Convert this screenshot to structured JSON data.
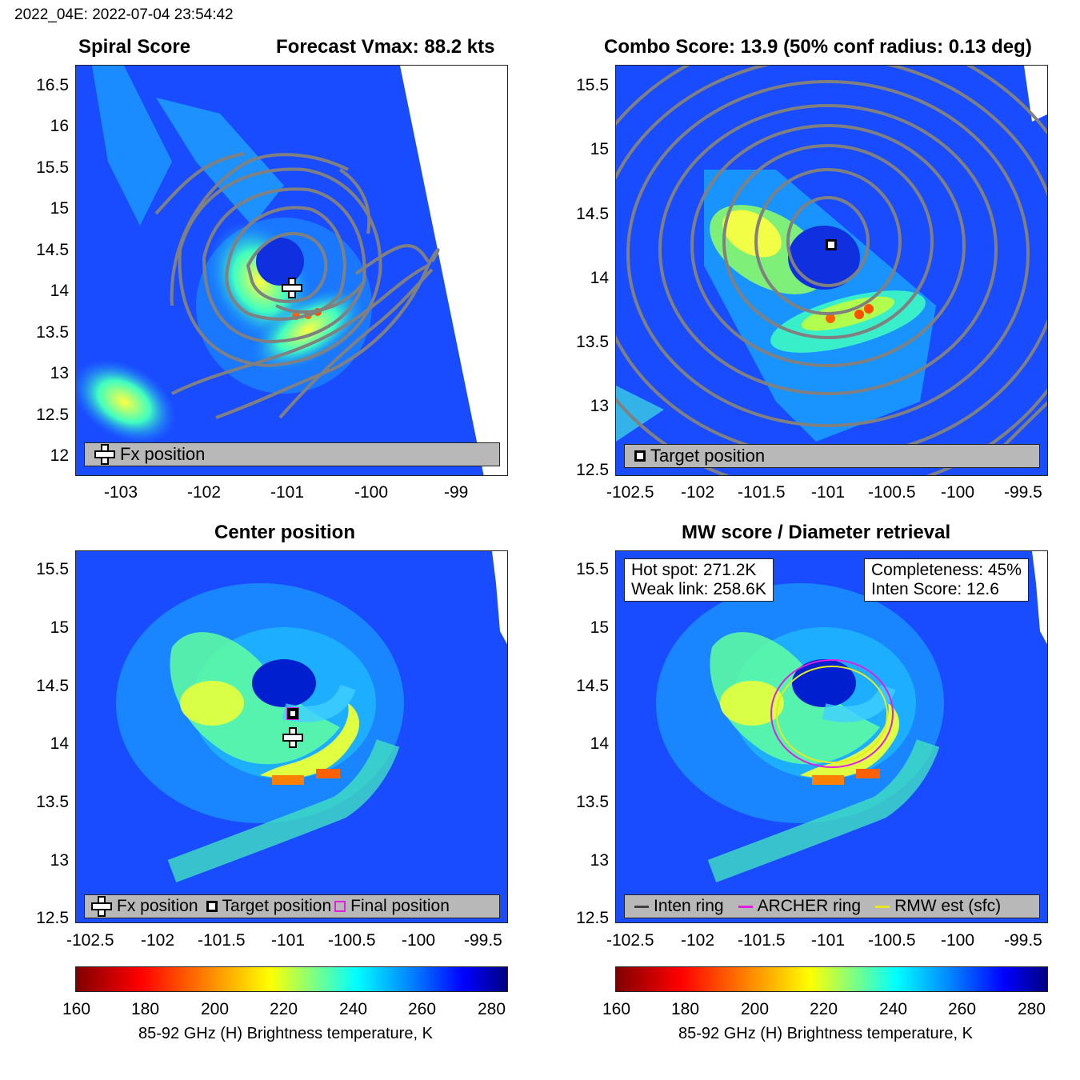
{
  "figure_title": "2022_04E: 2022-07-04 23:54:42",
  "panels": {
    "spiral": {
      "title_left": "Spiral Score",
      "title_right": "Forecast Vmax: 88.2 kts",
      "x_ticks": [
        "-103",
        "-102",
        "-101",
        "-100",
        "-99"
      ],
      "y_ticks": [
        "16.5",
        "16",
        "15.5",
        "15",
        "14.5",
        "14",
        "13.5",
        "13",
        "12.5",
        "12"
      ],
      "legend": [
        "Fx position"
      ]
    },
    "combo": {
      "title": "Combo Score: 13.9  (50% conf radius: 0.13 deg)",
      "x_ticks": [
        "-102.5",
        "-102",
        "-101.5",
        "-101",
        "-100.5",
        "-100",
        "-99.5"
      ],
      "y_ticks": [
        "15.5",
        "15",
        "14.5",
        "14",
        "13.5",
        "13",
        "12.5"
      ],
      "legend": [
        "Target position"
      ]
    },
    "center": {
      "title": "Center position",
      "x_ticks": [
        "-102.5",
        "-102",
        "-101.5",
        "-101",
        "-100.5",
        "-100",
        "-99.5"
      ],
      "y_ticks": [
        "15.5",
        "15",
        "14.5",
        "14",
        "13.5",
        "13",
        "12.5"
      ],
      "legend": [
        "Fx position",
        "Target position",
        "Final position"
      ]
    },
    "mw": {
      "title": "MW score / Diameter retrieval",
      "x_ticks": [
        "-102.5",
        "-102",
        "-101.5",
        "-101",
        "-100.5",
        "-100",
        "-99.5"
      ],
      "y_ticks": [
        "15.5",
        "15",
        "14.5",
        "14",
        "13.5",
        "13",
        "12.5"
      ],
      "info_left": [
        "Hot spot: 271.2K",
        "Weak link: 258.6K"
      ],
      "info_right": [
        "Completeness: 45%",
        "Inten Score: 12.6"
      ],
      "legend": [
        "Inten ring",
        "ARCHER ring",
        "RMW est (sfc)"
      ]
    }
  },
  "colorbar": {
    "ticks": [
      "160",
      "180",
      "200",
      "220",
      "240",
      "260",
      "280"
    ],
    "label": "85-92 GHz (H) Brightness temperature, K"
  },
  "colors": {
    "background_field": "#1a4cff",
    "contour": "#808080",
    "legend_bg": "#b8b8b8",
    "archer_ring": "#e020e0",
    "rmw_ring": "#e8e820",
    "inten_ring": "#404040"
  },
  "chart_data": [
    {
      "type": "heatmap",
      "title": "Spiral Score",
      "subtitle": "Forecast Vmax: 88.2 kts",
      "xlim": [
        -103.6,
        -98.4
      ],
      "ylim": [
        11.8,
        16.8
      ],
      "fx_position": {
        "lon": -101.0,
        "lat": 14.05
      }
    },
    {
      "type": "heatmap",
      "title": "Combo Score: 13.9  (50% conf radius: 0.13 deg)",
      "combo_score": 13.9,
      "conf_radius_deg": 0.13,
      "xlim": [
        -102.7,
        -99.4
      ],
      "ylim": [
        12.45,
        15.7
      ],
      "target_position": {
        "lon": -101.0,
        "lat": 14.27
      }
    },
    {
      "type": "heatmap",
      "title": "Center position",
      "xlim": [
        -102.7,
        -99.4
      ],
      "ylim": [
        12.45,
        15.7
      ],
      "fx_position": {
        "lon": -101.0,
        "lat": 14.07
      },
      "target_position": {
        "lon": -101.0,
        "lat": 14.27
      },
      "final_position": {
        "lon": -101.0,
        "lat": 14.27
      }
    },
    {
      "type": "heatmap",
      "title": "MW score / Diameter retrieval",
      "hot_spot_K": 271.2,
      "weak_link_K": 258.6,
      "completeness_pct": 45,
      "inten_score": 12.6,
      "xlim": [
        -102.7,
        -99.4
      ],
      "ylim": [
        12.45,
        15.7
      ],
      "rings": [
        {
          "name": "ARCHER ring",
          "center_lon": -101.0,
          "center_lat": 14.27,
          "radius_deg": 0.45
        },
        {
          "name": "RMW est (sfc)",
          "center_lon": -101.0,
          "center_lat": 14.27,
          "radius_deg": 0.4
        }
      ]
    },
    {
      "type": "colorbar",
      "range": [
        160,
        285
      ],
      "ticks": [
        160,
        180,
        200,
        220,
        240,
        260,
        280
      ],
      "label": "85-92 GHz (H) Brightness temperature, K"
    }
  ]
}
